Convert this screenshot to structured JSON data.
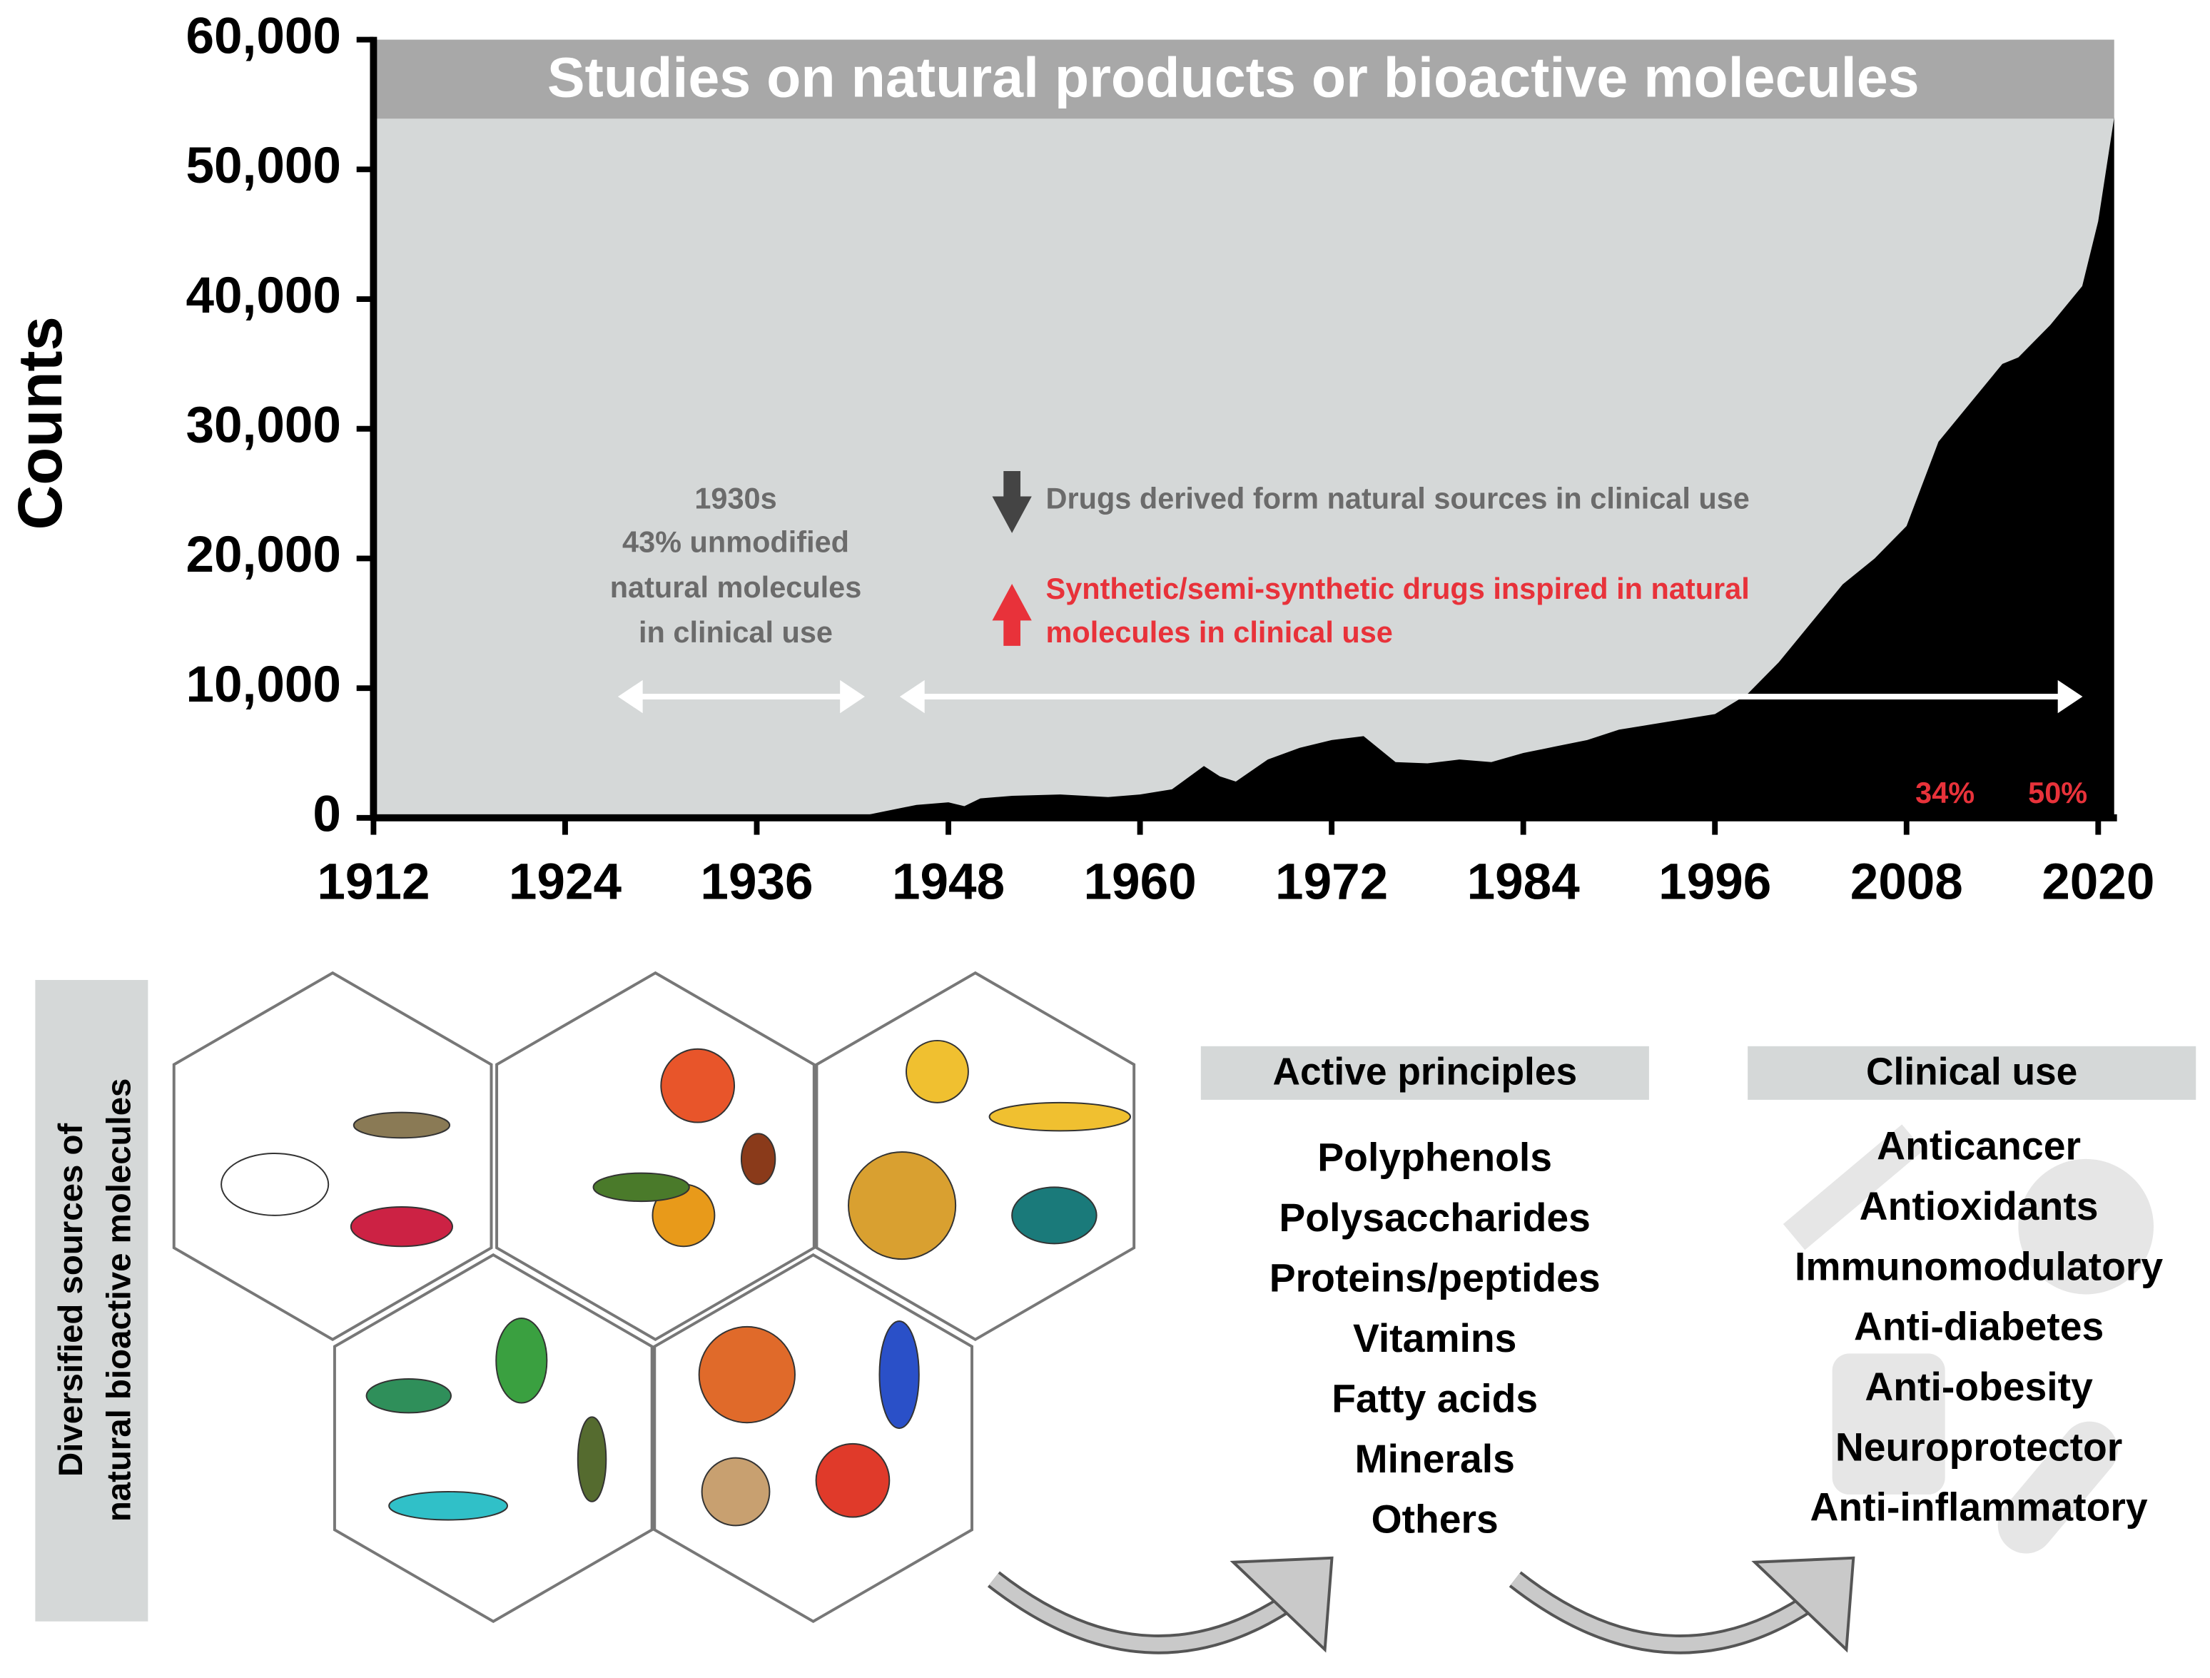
{
  "chart_data": {
    "type": "area",
    "title": "Studies on natural products or bioactive molecules",
    "y_label": "Counts",
    "x": [
      1912,
      1942,
      1944,
      1946,
      1948,
      1949,
      1950,
      1952,
      1955,
      1958,
      1960,
      1962,
      1964,
      1965,
      1966,
      1968,
      1970,
      1972,
      1974,
      1976,
      1978,
      1980,
      1982,
      1984,
      1986,
      1988,
      1990,
      1992,
      1994,
      1996,
      1998,
      2000,
      2002,
      2004,
      2006,
      2008,
      2010,
      2012,
      2014,
      2015,
      2017,
      2019,
      2020,
      2021
    ],
    "values": [
      0,
      0,
      500,
      1000,
      1200,
      900,
      1500,
      1700,
      1800,
      1600,
      1800,
      2200,
      4000,
      3200,
      2800,
      4500,
      5400,
      6000,
      6300,
      4300,
      4200,
      4500,
      4300,
      5000,
      5500,
      6000,
      6800,
      7200,
      7600,
      8000,
      9500,
      12000,
      15000,
      18000,
      20000,
      22500,
      29000,
      32000,
      35000,
      35500,
      38000,
      41000,
      46000,
      54000
    ],
    "color": "#000000",
    "xlim": [
      1912,
      2021
    ],
    "ylim": [
      0,
      60000
    ],
    "xticks": [
      1912,
      1924,
      1936,
      1948,
      1960,
      1972,
      1984,
      1996,
      2008,
      2020
    ],
    "yticks": [
      0,
      {
        "value": 10000,
        "label": "10,000"
      },
      {
        "value": 20000,
        "label": "20,000"
      },
      {
        "value": 30000,
        "label": "30,000"
      },
      {
        "value": 40000,
        "label": "40,000"
      },
      {
        "value": 50000,
        "label": "50,000"
      },
      {
        "value": 60000,
        "label": "60,000"
      }
    ],
    "annotations": {
      "period_note": [
        "1930s",
        "43% unmodified",
        "natural molecules",
        "in clinical use"
      ],
      "gray_note": "Drugs derived form natural sources in clinical use",
      "red_note": [
        "Synthetic/semi-synthetic drugs inspired in natural",
        "molecules in clinical use"
      ],
      "share_labels": [
        "34%",
        "50%"
      ]
    }
  },
  "diagram": {
    "sources_label": [
      "Diversified sources of",
      "natural bioactive molecules"
    ],
    "active_principles": {
      "title": "Active principles",
      "items": [
        "Polyphenols",
        "Polysaccharides",
        "Proteins/peptides",
        "Vitamins",
        "Fatty acids",
        "Minerals",
        "Others"
      ]
    },
    "clinical_use": {
      "title": "Clinical use",
      "items": [
        "Anticancer",
        "Antioxidants",
        "Immunomodulatory",
        "Anti-diabetes",
        "Anti-obesity",
        "Neuroprotector",
        "Anti-inflammatory"
      ]
    }
  }
}
